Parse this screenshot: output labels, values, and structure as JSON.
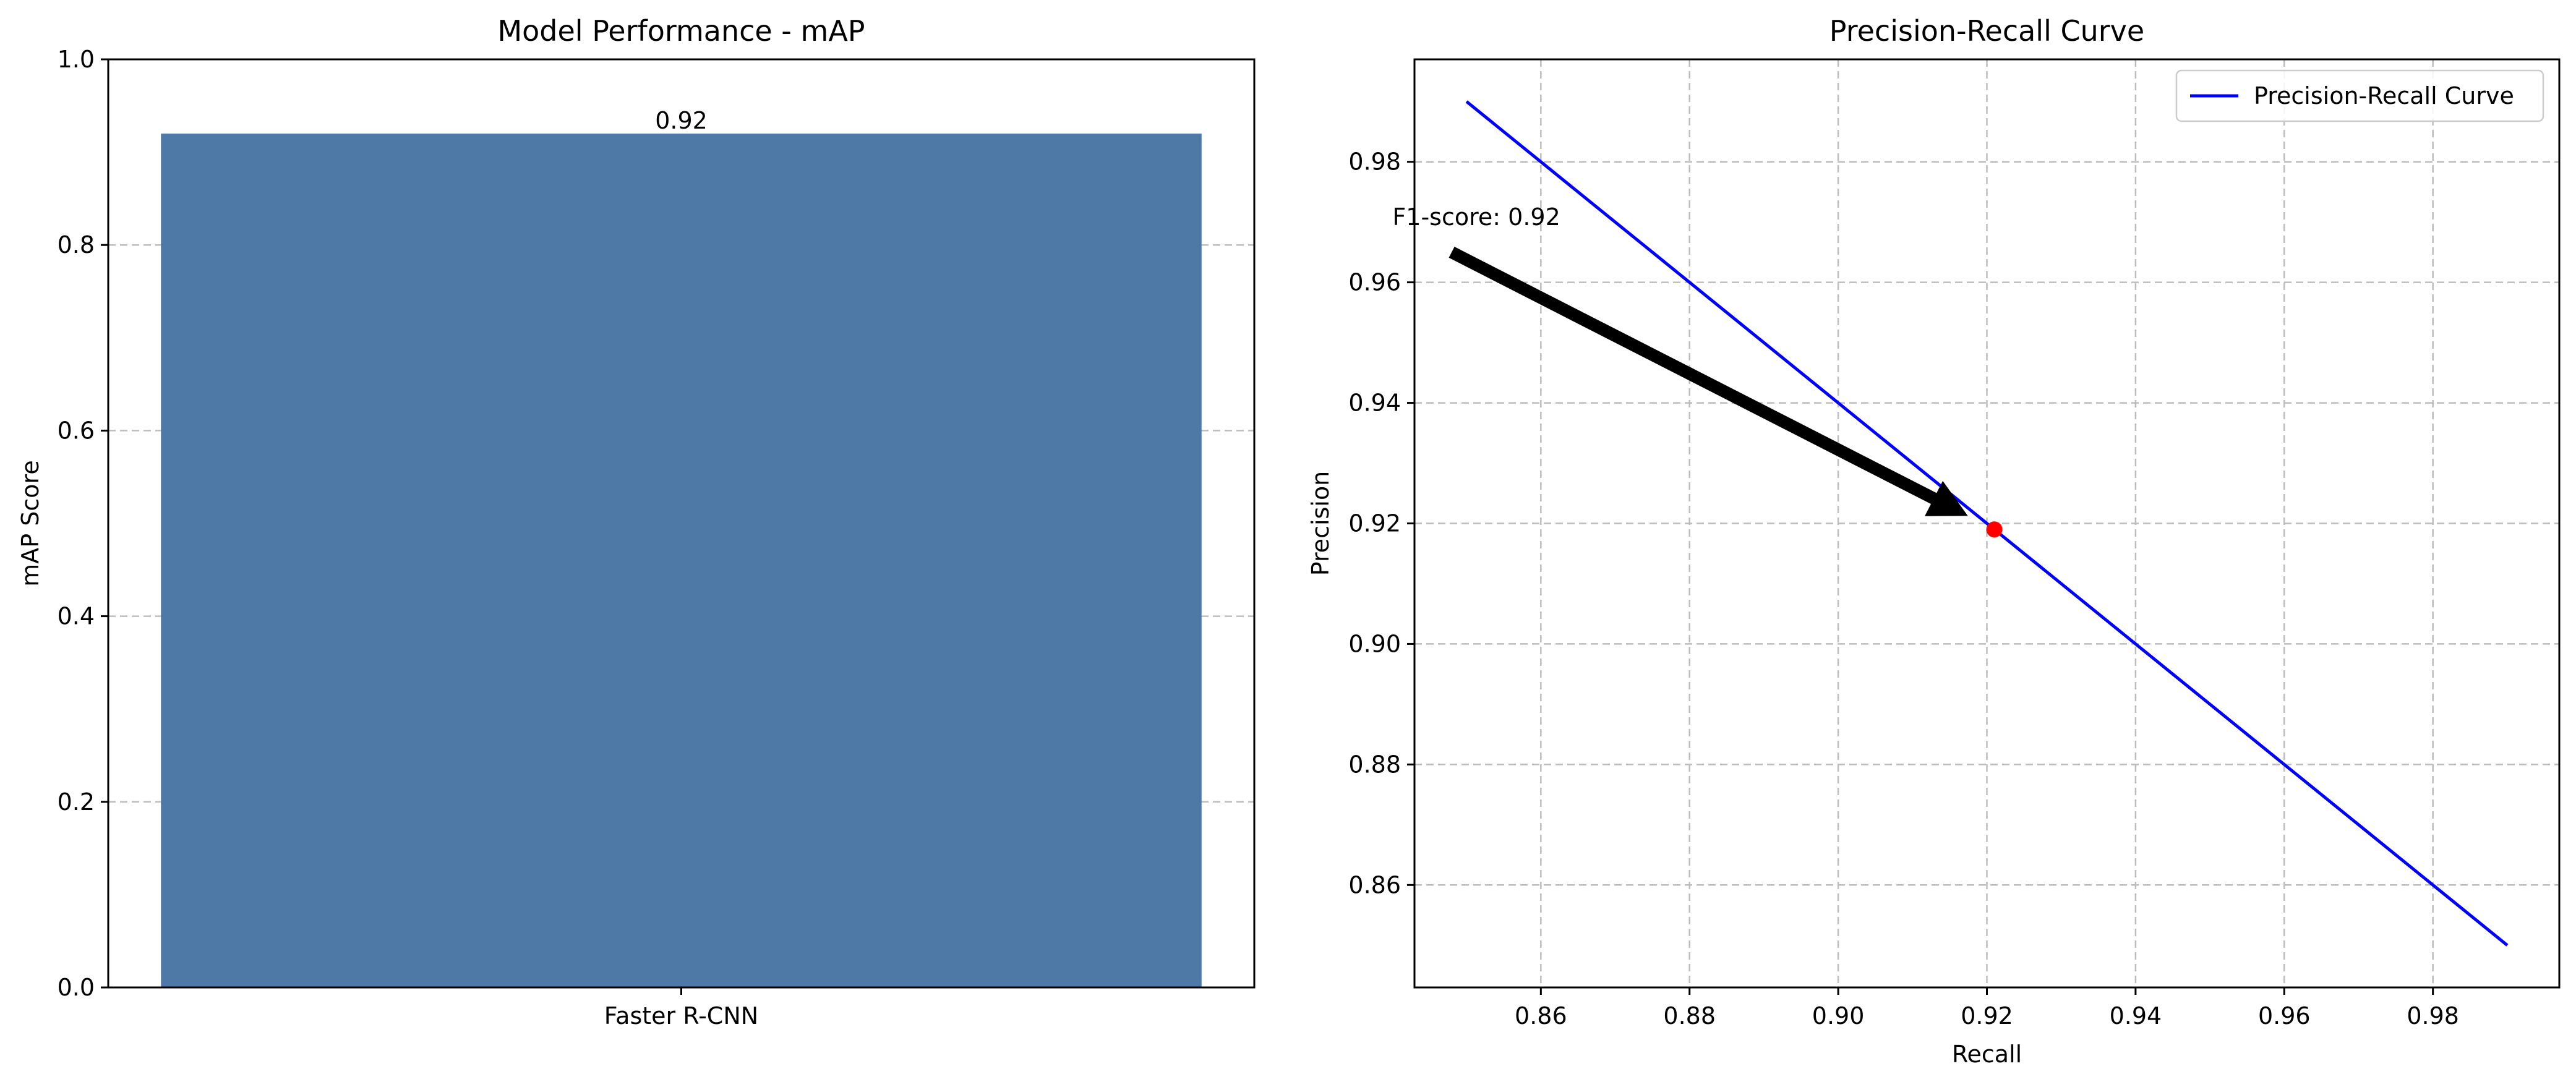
{
  "chart_data": [
    {
      "type": "bar",
      "title": "Model Performance - mAP",
      "xlabel": "",
      "ylabel": "mAP Score",
      "categories": [
        "Faster R-CNN"
      ],
      "values": [
        0.92
      ],
      "data_labels": [
        "0.92"
      ],
      "ylim": [
        0,
        1.0
      ],
      "yticks": [
        "0.0",
        "0.2",
        "0.4",
        "0.6",
        "0.8",
        "1.0"
      ],
      "grid": "y-dashed",
      "bar_color": "#4e79a7"
    },
    {
      "type": "line",
      "title": "Precision-Recall Curve",
      "xlabel": "Recall",
      "ylabel": "Precision",
      "series": [
        {
          "name": "Precision-Recall Curve",
          "x": [
            0.85,
            0.99
          ],
          "y": [
            0.99,
            0.85
          ],
          "color": "#0000ff"
        }
      ],
      "highlight_point": {
        "x": 0.921,
        "y": 0.919,
        "color": "#ff0000"
      },
      "annotation": {
        "text": "F1-score: 0.92",
        "text_x": 0.848,
        "text_y": 0.965,
        "arrow_to_x": 0.921,
        "arrow_to_y": 0.919
      },
      "xlim": [
        0.843,
        0.997
      ],
      "ylim": [
        0.843,
        0.997
      ],
      "xticks": [
        "0.86",
        "0.88",
        "0.90",
        "0.92",
        "0.94",
        "0.96",
        "0.98"
      ],
      "yticks": [
        "0.86",
        "0.88",
        "0.90",
        "0.92",
        "0.94",
        "0.96",
        "0.98"
      ],
      "grid": "both-dashed",
      "legend": "top-right"
    }
  ]
}
